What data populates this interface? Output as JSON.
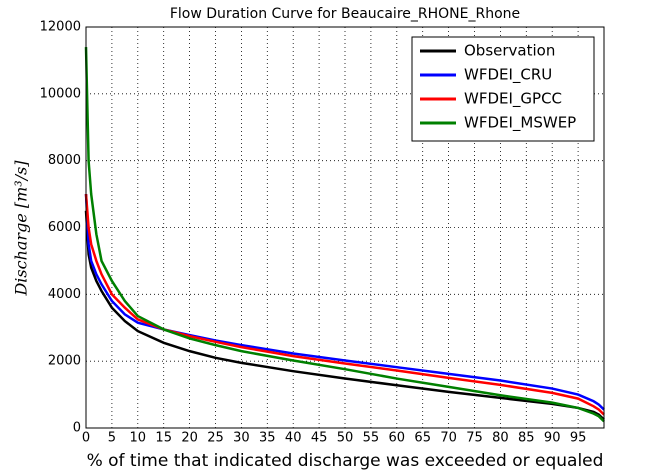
{
  "chart_data": {
    "type": "line",
    "title": "Flow Duration Curve for Beaucaire_RHONE_Rhone",
    "x_label": "% of time that indicated discharge was exceeded or equaled",
    "y_label": "Discharge [m³/s]",
    "x": [
      0,
      0.5,
      1,
      2,
      3,
      5,
      7.5,
      10,
      15,
      20,
      25,
      30,
      40,
      50,
      60,
      70,
      80,
      90,
      95,
      98,
      99,
      100
    ],
    "series": [
      {
        "name": "Observation",
        "color": "#000000",
        "values": [
          6500,
          5200,
          4800,
          4400,
          4100,
          3600,
          3200,
          2900,
          2550,
          2300,
          2100,
          1950,
          1700,
          1480,
          1280,
          1080,
          900,
          720,
          600,
          480,
          400,
          250
        ]
      },
      {
        "name": "WFDEI_CRU",
        "color": "#0000ff",
        "values": [
          7000,
          5500,
          5000,
          4600,
          4300,
          3800,
          3400,
          3150,
          2950,
          2780,
          2620,
          2480,
          2230,
          2020,
          1820,
          1620,
          1420,
          1180,
          1000,
          800,
          700,
          550
        ]
      },
      {
        "name": "WFDEI_GPCC",
        "color": "#ff0000",
        "values": [
          7000,
          6000,
          5500,
          5000,
          4600,
          4000,
          3600,
          3250,
          2950,
          2750,
          2580,
          2420,
          2150,
          1930,
          1720,
          1500,
          1290,
          1050,
          880,
          650,
          550,
          400
        ]
      },
      {
        "name": "WFDEI_MSWEP",
        "color": "#008000",
        "values": [
          11400,
          8000,
          7000,
          5800,
          5000,
          4400,
          3800,
          3350,
          2950,
          2680,
          2480,
          2300,
          2020,
          1760,
          1480,
          1230,
          980,
          760,
          600,
          430,
          350,
          200
        ]
      }
    ],
    "xlim": [
      0,
      100
    ],
    "xticks": [
      0,
      5,
      10,
      15,
      20,
      25,
      30,
      35,
      40,
      45,
      50,
      55,
      60,
      65,
      70,
      75,
      80,
      85,
      90,
      95
    ],
    "ylim": [
      0,
      12000
    ],
    "yticks": [
      0,
      2000,
      4000,
      6000,
      8000,
      10000,
      12000
    ],
    "grid": true,
    "legend": "upper right"
  }
}
